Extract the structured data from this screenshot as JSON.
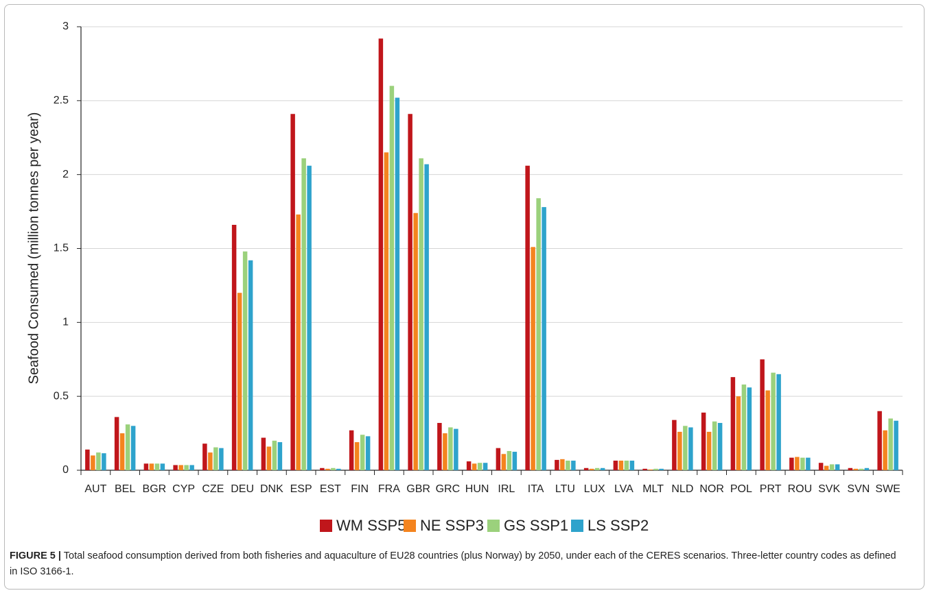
{
  "chart_data": {
    "type": "bar",
    "y_label": "Seafood Consumed (million tonnes per year)",
    "categories": [
      "AUT",
      "BEL",
      "BGR",
      "CYP",
      "CZE",
      "DEU",
      "DNK",
      "ESP",
      "EST",
      "FIN",
      "FRA",
      "GBR",
      "GRC",
      "HUN",
      "IRL",
      "ITA",
      "LTU",
      "LUX",
      "LVA",
      "MLT",
      "NLD",
      "NOR",
      "POL",
      "PRT",
      "ROU",
      "SVK",
      "SVN",
      "SWE"
    ],
    "series": [
      {
        "name": "WM SSP5",
        "color": "#c0161b",
        "values": [
          0.14,
          0.36,
          0.045,
          0.035,
          0.18,
          1.66,
          0.22,
          2.41,
          0.015,
          0.27,
          2.92,
          2.41,
          0.32,
          0.06,
          0.15,
          2.06,
          0.07,
          0.015,
          0.065,
          0.01,
          0.34,
          0.39,
          0.63,
          0.75,
          0.085,
          0.05,
          0.015,
          0.4
        ]
      },
      {
        "name": "NE SSP3",
        "color": "#f4841f",
        "values": [
          0.1,
          0.25,
          0.045,
          0.035,
          0.12,
          1.2,
          0.16,
          1.73,
          0.01,
          0.19,
          2.15,
          1.74,
          0.25,
          0.045,
          0.11,
          1.51,
          0.075,
          0.01,
          0.065,
          0.005,
          0.26,
          0.26,
          0.5,
          0.54,
          0.09,
          0.03,
          0.01,
          0.27
        ]
      },
      {
        "name": "GS SSP1",
        "color": "#9bd17c",
        "values": [
          0.12,
          0.31,
          0.045,
          0.035,
          0.155,
          1.48,
          0.2,
          2.11,
          0.015,
          0.24,
          2.6,
          2.11,
          0.29,
          0.05,
          0.13,
          1.84,
          0.065,
          0.015,
          0.065,
          0.01,
          0.3,
          0.33,
          0.58,
          0.66,
          0.085,
          0.04,
          0.01,
          0.35
        ]
      },
      {
        "name": "LS SSP2",
        "color": "#2ea3cc",
        "values": [
          0.115,
          0.3,
          0.045,
          0.035,
          0.15,
          1.42,
          0.19,
          2.06,
          0.01,
          0.23,
          2.52,
          2.07,
          0.28,
          0.05,
          0.125,
          1.78,
          0.065,
          0.015,
          0.065,
          0.01,
          0.29,
          0.32,
          0.56,
          0.65,
          0.085,
          0.04,
          0.015,
          0.335
        ]
      }
    ],
    "ylim": [
      0,
      3
    ],
    "yticks": [
      0,
      0.5,
      1,
      1.5,
      2,
      2.5,
      3
    ],
    "grid": true,
    "legend": "bottom"
  },
  "caption": {
    "label": "FIGURE 5 |",
    "text": "Total seafood consumption derived from both fisheries and aquaculture of EU28 countries (plus Norway) by 2050, under each of the CERES scenarios. Three-letter country codes as defined in ISO 3166-1."
  }
}
